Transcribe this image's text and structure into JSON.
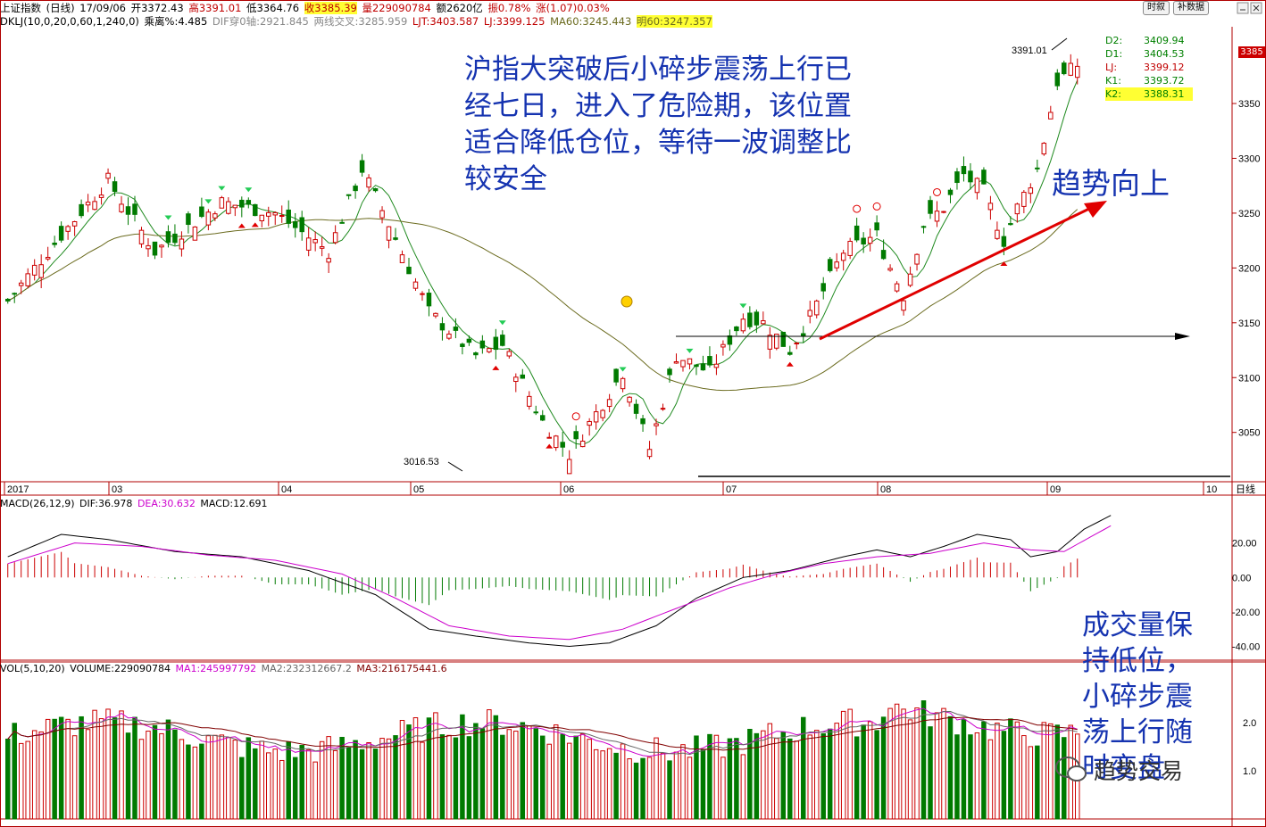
{
  "header": {
    "title": "上证指数",
    "period": "(日线)",
    "date": "17/09/06",
    "open": "开3372.43",
    "high": "高3391.01",
    "low": "低3364.76",
    "close": "收3385.39",
    "volume": "量229090784",
    "amount": "额2620亿",
    "amplitude": "振0.78%",
    "change": "涨(1.07)0.03%"
  },
  "indicator_line": {
    "name": "DKLJ(10,0,20,0,60,1,240,0)",
    "bias": "乘离%:4.485",
    "dif_cross": "DIF穿0轴:2921.845",
    "two_line": "两线交叉:3285.959",
    "ljt": "LJT:3403.587",
    "lj": "LJ:3399.125",
    "ma60": "MA60:3245.443",
    "ming60": "明60:3247.357"
  },
  "buttons": {
    "history": "时叙",
    "fuquan": "补数据"
  },
  "right_box": [
    {
      "label": "D2:",
      "value": "3409.94"
    },
    {
      "label": "D1:",
      "value": "3404.53"
    },
    {
      "label": "LJ:",
      "value": "3399.12"
    },
    {
      "label": "K1:",
      "value": "3393.72"
    },
    {
      "label": "K2:",
      "value": "3388.31"
    }
  ],
  "price_marker": "3385",
  "annotations": {
    "main": "沪指大突破后小碎步震荡上行已经七日，进入了危险期，该位置适合降低仓位，等待一波调整比较安全",
    "trend": "趋势向上",
    "volume": "成交量保持低位，小碎步震荡上行随时变盘",
    "watermark": "趋势交易"
  },
  "macd_header": {
    "name": "MACD(26,12,9)",
    "dif": "DIF:36.978",
    "dea": "DEA:30.632",
    "macd": "MACD:12.691"
  },
  "vol_header": {
    "name": "VOL(5,10,20)",
    "volume": "VOLUME:229090784",
    "ma1": "MA1:245997792",
    "ma2": "MA2:232312667.2",
    "ma3": "MA3:216175441.6"
  },
  "colors": {
    "up": "#cc0000",
    "down": "#007a00",
    "ma_short": "#1f8a1f",
    "ma_long": "#6b6b1f",
    "dea": "#cc00cc",
    "arrow": "#e00000",
    "annotation": "#1533b0"
  },
  "chart_data": [
    {
      "type": "candlestick",
      "title": "上证指数 (日线)",
      "x_axis_labels": [
        "2017",
        "03",
        "04",
        "05",
        "06",
        "07",
        "08",
        "09",
        "10"
      ],
      "x_axis_suffix": "日线",
      "y_ticks": [
        3050,
        3100,
        3150,
        3200,
        3250,
        3300,
        3350
      ],
      "ylim": [
        3005,
        3420
      ],
      "annotations": [
        {
          "label": "3016.53",
          "kind": "low"
        },
        {
          "label": "3391.01",
          "kind": "high"
        }
      ],
      "days_approx": 160,
      "anchors": [
        {
          "x": 0,
          "close": 3170
        },
        {
          "x": 8,
          "close": 3230
        },
        {
          "x": 15,
          "close": 3280
        },
        {
          "x": 22,
          "close": 3215
        },
        {
          "x": 32,
          "close": 3260
        },
        {
          "x": 40,
          "close": 3250
        },
        {
          "x": 48,
          "close": 3215
        },
        {
          "x": 53,
          "close": 3290
        },
        {
          "x": 57,
          "close": 3240
        },
        {
          "x": 63,
          "close": 3160
        },
        {
          "x": 70,
          "close": 3120
        },
        {
          "x": 74,
          "close": 3130
        },
        {
          "x": 80,
          "close": 3060
        },
        {
          "x": 84,
          "close": 3030
        },
        {
          "x": 92,
          "close": 3105
        },
        {
          "x": 96,
          "close": 3035
        },
        {
          "x": 100,
          "close": 3120
        },
        {
          "x": 105,
          "close": 3105
        },
        {
          "x": 110,
          "close": 3155
        },
        {
          "x": 113,
          "close": 3150
        },
        {
          "x": 117,
          "close": 3125
        },
        {
          "x": 120,
          "close": 3155
        },
        {
          "x": 125,
          "close": 3215
        },
        {
          "x": 130,
          "close": 3230
        },
        {
          "x": 132,
          "close": 3200
        },
        {
          "x": 134,
          "close": 3175
        },
        {
          "x": 137,
          "close": 3240
        },
        {
          "x": 140,
          "close": 3255
        },
        {
          "x": 143,
          "close": 3285
        },
        {
          "x": 146,
          "close": 3270
        },
        {
          "x": 149,
          "close": 3225
        },
        {
          "x": 151,
          "close": 3255
        },
        {
          "x": 154,
          "close": 3290
        },
        {
          "x": 157,
          "close": 3370
        },
        {
          "x": 160,
          "close": 3385
        }
      ]
    },
    {
      "type": "macd",
      "y_ticks": [
        20,
        0,
        -20,
        -40
      ],
      "ylim": [
        -48,
        40
      ],
      "dif": [
        [
          0,
          12
        ],
        [
          8,
          25
        ],
        [
          15,
          22
        ],
        [
          25,
          15
        ],
        [
          35,
          12
        ],
        [
          45,
          4
        ],
        [
          55,
          -10
        ],
        [
          63,
          -30
        ],
        [
          70,
          -34
        ],
        [
          78,
          -38
        ],
        [
          84,
          -40
        ],
        [
          90,
          -38
        ],
        [
          97,
          -28
        ],
        [
          103,
          -12
        ],
        [
          110,
          0
        ],
        [
          117,
          4
        ],
        [
          125,
          12
        ],
        [
          130,
          16
        ],
        [
          135,
          12
        ],
        [
          140,
          18
        ],
        [
          145,
          25
        ],
        [
          150,
          22
        ],
        [
          153,
          12
        ],
        [
          157,
          15
        ],
        [
          161,
          28
        ],
        [
          165,
          36
        ]
      ],
      "dea": [
        [
          0,
          8
        ],
        [
          10,
          20
        ],
        [
          20,
          18
        ],
        [
          30,
          13
        ],
        [
          40,
          10
        ],
        [
          50,
          2
        ],
        [
          58,
          -12
        ],
        [
          66,
          -28
        ],
        [
          75,
          -34
        ],
        [
          84,
          -36
        ],
        [
          92,
          -30
        ],
        [
          100,
          -18
        ],
        [
          108,
          -6
        ],
        [
          115,
          2
        ],
        [
          122,
          8
        ],
        [
          130,
          12
        ],
        [
          138,
          14
        ],
        [
          146,
          20
        ],
        [
          153,
          16
        ],
        [
          158,
          15
        ],
        [
          165,
          30
        ]
      ]
    },
    {
      "type": "volume",
      "y_ticks": [
        2.0,
        1.0
      ],
      "ylim": [
        0,
        3.0
      ]
    }
  ]
}
